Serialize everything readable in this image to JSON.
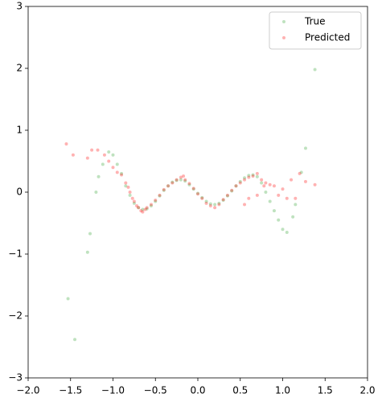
{
  "chart_data": {
    "type": "scatter",
    "series": [
      {
        "name": "True",
        "color": "#2ca02c",
        "x": [
          -1.05,
          -1.0,
          -0.95,
          -0.9,
          -0.85,
          -0.8,
          -0.75,
          -0.7,
          -0.65,
          -0.6,
          -0.55,
          -0.5,
          -0.45,
          -0.4,
          -0.35,
          -0.3,
          -0.25,
          -0.2,
          -0.15,
          -0.1,
          -0.05,
          0.0,
          0.05,
          0.1,
          0.15,
          0.2,
          0.25,
          0.3,
          0.35,
          0.4,
          0.45,
          0.5,
          0.55,
          0.6,
          0.65,
          0.7,
          0.75,
          0.8,
          0.85,
          0.9,
          0.95,
          1.0,
          1.05,
          -1.53,
          -1.45,
          -1.3,
          -1.27,
          -1.2,
          -1.17,
          -1.12,
          1.38,
          1.27,
          1.22,
          1.15,
          1.12
        ],
        "y": [
          0.65,
          0.6,
          0.45,
          0.3,
          0.1,
          -0.05,
          -0.18,
          -0.25,
          -0.28,
          -0.27,
          -0.22,
          -0.15,
          -0.06,
          0.03,
          0.1,
          0.16,
          0.19,
          0.2,
          0.18,
          0.12,
          0.05,
          -0.02,
          -0.09,
          -0.15,
          -0.19,
          -0.2,
          -0.18,
          -0.13,
          -0.06,
          0.02,
          0.1,
          0.17,
          0.23,
          0.27,
          0.28,
          0.25,
          0.15,
          0.0,
          -0.15,
          -0.3,
          -0.45,
          -0.6,
          -0.65,
          -1.72,
          -2.38,
          -0.97,
          -0.67,
          0.0,
          0.25,
          0.45,
          1.98,
          0.71,
          0.32,
          -0.2,
          -0.4
        ]
      },
      {
        "name": "Predicted",
        "color": "#ff0000",
        "x": [
          -0.85,
          -0.82,
          -0.8,
          -0.77,
          -0.75,
          -0.72,
          -0.7,
          -0.67,
          -0.65,
          -0.62,
          -0.6,
          -0.55,
          -0.5,
          -0.45,
          -0.4,
          -0.35,
          -0.3,
          -0.25,
          -0.2,
          -0.17,
          -0.15,
          -0.1,
          -0.05,
          0.0,
          0.05,
          0.1,
          0.15,
          0.2,
          0.25,
          0.3,
          0.35,
          0.4,
          0.45,
          0.5,
          0.55,
          0.6,
          0.65,
          0.7,
          0.75,
          -1.55,
          -1.47,
          -1.3,
          -1.25,
          -1.18,
          -1.1,
          -1.05,
          -1.0,
          -0.95,
          -0.9,
          0.8,
          0.9,
          1.0,
          1.1,
          1.2,
          1.27,
          1.38,
          0.7,
          0.6,
          0.55,
          1.05,
          1.15,
          0.95,
          0.85,
          0.78
        ],
        "y": [
          0.15,
          0.08,
          0.0,
          -0.1,
          -0.15,
          -0.22,
          -0.25,
          -0.3,
          -0.32,
          -0.28,
          -0.25,
          -0.2,
          -0.13,
          -0.05,
          0.04,
          0.1,
          0.15,
          0.2,
          0.24,
          0.26,
          0.2,
          0.14,
          0.06,
          -0.03,
          -0.1,
          -0.18,
          -0.22,
          -0.25,
          -0.2,
          -0.12,
          -0.05,
          0.03,
          0.1,
          0.15,
          0.2,
          0.24,
          0.26,
          0.3,
          0.2,
          0.78,
          0.6,
          0.55,
          0.68,
          0.68,
          0.6,
          0.5,
          0.4,
          0.32,
          0.28,
          0.15,
          0.1,
          0.05,
          0.2,
          0.3,
          0.17,
          0.12,
          -0.05,
          -0.1,
          -0.2,
          -0.1,
          -0.1,
          -0.05,
          0.12,
          0.1
        ]
      }
    ],
    "xlim": [
      -2.0,
      2.0
    ],
    "ylim": [
      -3,
      3
    ],
    "xticks": [
      {
        "value": -2.0,
        "label": "−2.0"
      },
      {
        "value": -1.5,
        "label": "−1.5"
      },
      {
        "value": -1.0,
        "label": "−1.0"
      },
      {
        "value": -0.5,
        "label": "−0.5"
      },
      {
        "value": 0.0,
        "label": "0.0"
      },
      {
        "value": 0.5,
        "label": "0.5"
      },
      {
        "value": 1.0,
        "label": "1.0"
      },
      {
        "value": 1.5,
        "label": "1.5"
      },
      {
        "value": 2.0,
        "label": "2.0"
      }
    ],
    "yticks": [
      {
        "value": -3,
        "label": "−3"
      },
      {
        "value": -2,
        "label": "−2"
      },
      {
        "value": -1,
        "label": "−1"
      },
      0,
      1,
      2,
      3
    ],
    "legend": "upper right",
    "grid": false
  }
}
